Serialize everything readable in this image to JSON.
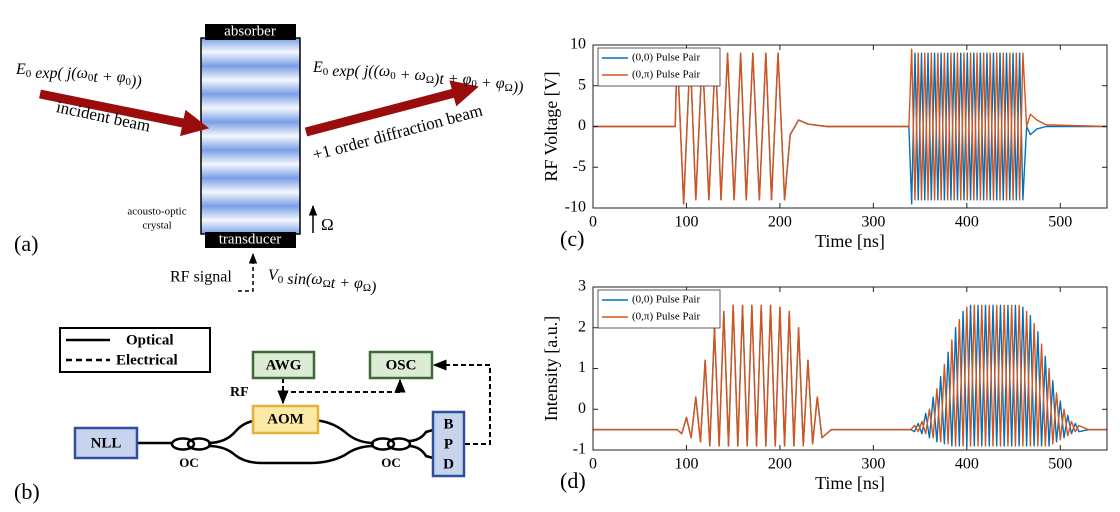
{
  "figure_a": {
    "label": "(a)",
    "absorber": "absorber",
    "transducer": "transducer",
    "incident_beam": "incident beam",
    "diffraction_beam": "+1 order diffraction beam",
    "crystal": [
      "acousto-optic",
      "crystal"
    ],
    "omega": "Ω",
    "rf_signal": "RF signal",
    "input_field": [
      "E",
      {
        "sub": "0"
      },
      " exp( j(ω",
      {
        "sub": "0"
      },
      "t + φ",
      {
        "sub": "0"
      },
      "))"
    ],
    "output_field": [
      "E",
      {
        "sub": "0"
      },
      " exp( j((ω",
      {
        "sub": "0"
      },
      " + ω",
      {
        "sub": "Ω"
      },
      ")t + φ",
      {
        "sub": "0"
      },
      " + φ",
      {
        "sub": "Ω"
      },
      "))"
    ],
    "drive": [
      "V",
      {
        "sub": "0"
      },
      " sin(ω",
      {
        "sub": "Ω"
      },
      "t + φ",
      {
        "sub": "Ω"
      },
      ")"
    ]
  },
  "figure_b": {
    "label": "(b)",
    "legend": [
      "Optical",
      "Electrical"
    ],
    "awg": "AWG",
    "osc": "OSC",
    "aom": "AOM",
    "nll": "NLL",
    "bpd": [
      "B",
      "P",
      "D"
    ],
    "rf": "RF",
    "couplers": [
      "OC",
      "OC"
    ]
  },
  "chart_data": [
    {
      "type": "line",
      "panel_label": "(c)",
      "xlabel": "Time [ns]",
      "ylabel": "RF Voltage [V]",
      "legend": "upper left",
      "xlim": [
        0,
        550
      ],
      "ylim": [
        -10,
        10
      ],
      "xticks": [
        0,
        100,
        200,
        300,
        400,
        500
      ],
      "yticks": [
        -10,
        -5,
        0,
        5,
        10
      ],
      "x": [
        0,
        88,
        90,
        97,
        104,
        110,
        117,
        124,
        131,
        137,
        144,
        151,
        158,
        164,
        171,
        178,
        185,
        191,
        198,
        205,
        211,
        220,
        230,
        250,
        338,
        341,
        344.5,
        348,
        351.5,
        355,
        358.5,
        362,
        365.5,
        369,
        372.5,
        376,
        379.5,
        383,
        386.5,
        390,
        393.5,
        397,
        400.5,
        404,
        407.5,
        411,
        414.5,
        418,
        421.5,
        425,
        428.5,
        432,
        435.5,
        439,
        442.5,
        446,
        449.5,
        453,
        456.5,
        460,
        464,
        468,
        475,
        485,
        550
      ],
      "series": [
        {
          "name": "(0,0) Pulse Pair",
          "color": "#0072BD",
          "values": [
            0,
            0,
            9.5,
            -9.5,
            9,
            -9,
            9,
            -9,
            9,
            -9,
            9,
            -9,
            9,
            -9,
            9,
            -9,
            9,
            -9,
            9,
            -9,
            -1,
            0.8,
            0.3,
            0,
            0,
            -9.5,
            9,
            -9,
            9,
            -9,
            9,
            -9,
            9,
            -9,
            9,
            -9,
            9,
            -9,
            9,
            -9,
            9,
            -9,
            9,
            -9,
            9,
            -9,
            9,
            -9,
            9,
            -9,
            9,
            -9,
            9,
            -9,
            9,
            -9,
            9,
            -9,
            9,
            -9,
            0,
            -1,
            -0.3,
            0,
            0
          ]
        },
        {
          "name": "(0,π) Pulse Pair",
          "color": "#D95319",
          "values": [
            0,
            0,
            9.5,
            -9.5,
            9,
            -9,
            9,
            -9,
            9,
            -9,
            9,
            -9,
            9,
            -9,
            9,
            -9,
            9,
            -9,
            9,
            -9,
            -1,
            0.8,
            0.3,
            0,
            0,
            9.5,
            -9,
            9,
            -9,
            9,
            -9,
            9,
            -9,
            9,
            -9,
            9,
            -9,
            9,
            -9,
            9,
            -9,
            9,
            -9,
            9,
            -9,
            9,
            -9,
            9,
            -9,
            9,
            -9,
            9,
            -9,
            9,
            -9,
            9,
            -9,
            9,
            -9,
            9,
            0,
            1.5,
            0.8,
            0.2,
            0
          ]
        }
      ]
    },
    {
      "type": "line",
      "panel_label": "(d)",
      "xlabel": "Time [ns]",
      "ylabel": "Intensity [a.u.]",
      "legend": "upper left",
      "xlim": [
        0,
        550
      ],
      "ylim": [
        -1,
        3
      ],
      "xticks": [
        0,
        100,
        200,
        300,
        400,
        500
      ],
      "yticks": [
        -1,
        0,
        1,
        2,
        3
      ],
      "x": [
        0,
        90,
        95,
        100,
        105,
        110,
        115,
        120,
        125,
        130,
        135,
        140,
        145,
        150,
        155,
        160,
        165,
        170,
        175,
        180,
        185,
        190,
        195,
        200,
        205,
        210,
        215,
        220,
        225,
        230,
        235,
        240,
        245,
        255,
        340,
        344,
        348,
        352,
        356,
        360,
        364,
        368,
        372,
        376,
        380,
        384,
        388,
        392,
        396,
        400,
        404,
        408,
        412,
        416,
        420,
        424,
        428,
        432,
        436,
        440,
        444,
        448,
        452,
        456,
        460,
        464,
        468,
        472,
        476,
        480,
        484,
        488,
        492,
        496,
        500,
        504,
        508,
        512,
        516,
        520,
        530,
        550
      ],
      "series": [
        {
          "name": "(0,0) Pulse Pair",
          "color": "#0072BD",
          "values": [
            -0.5,
            -0.5,
            -0.6,
            -0.2,
            -0.7,
            0.3,
            -0.8,
            1.2,
            -0.9,
            2.0,
            -0.9,
            2.4,
            -0.9,
            2.55,
            -0.9,
            2.55,
            -0.9,
            2.55,
            -0.9,
            2.55,
            -0.9,
            2.55,
            -0.9,
            2.5,
            -0.9,
            2.4,
            -0.9,
            2.0,
            -0.9,
            1.2,
            -0.85,
            0.3,
            -0.7,
            -0.5,
            -0.5,
            -0.55,
            -0.35,
            -0.6,
            -0.1,
            -0.7,
            0.3,
            -0.8,
            0.8,
            -0.85,
            1.4,
            -0.9,
            2.0,
            -0.9,
            2.4,
            -0.9,
            2.55,
            -0.9,
            2.55,
            -0.9,
            2.55,
            -0.9,
            2.55,
            -0.9,
            2.55,
            -0.9,
            2.55,
            -0.9,
            2.55,
            -0.9,
            2.5,
            -0.9,
            2.3,
            -0.9,
            1.9,
            -0.9,
            1.3,
            -0.9,
            0.7,
            -0.8,
            0.2,
            -0.7,
            -0.15,
            -0.6,
            -0.35,
            -0.55,
            -0.5,
            -0.5
          ]
        },
        {
          "name": "(0,π) Pulse Pair",
          "color": "#D95319",
          "values": [
            -0.5,
            -0.5,
            -0.6,
            -0.2,
            -0.7,
            0.3,
            -0.8,
            1.2,
            -0.9,
            2.0,
            -0.9,
            2.4,
            -0.9,
            2.55,
            -0.9,
            2.55,
            -0.9,
            2.55,
            -0.9,
            2.55,
            -0.9,
            2.55,
            -0.9,
            2.5,
            -0.9,
            2.4,
            -0.9,
            2.0,
            -0.9,
            1.2,
            -0.85,
            0.3,
            -0.7,
            -0.5,
            -0.5,
            -0.4,
            -0.55,
            -0.3,
            -0.6,
            0.0,
            -0.7,
            0.5,
            -0.8,
            1.1,
            -0.85,
            1.7,
            -0.9,
            2.2,
            -0.9,
            2.5,
            -0.9,
            2.55,
            -0.9,
            2.55,
            -0.9,
            2.55,
            -0.9,
            2.55,
            -0.9,
            2.55,
            -0.9,
            2.55,
            -0.9,
            2.55,
            -0.9,
            2.4,
            -0.9,
            2.1,
            -0.9,
            1.6,
            -0.9,
            1.0,
            -0.85,
            0.4,
            -0.75,
            0.0,
            -0.65,
            -0.3,
            -0.55,
            -0.4,
            -0.5,
            -0.5
          ]
        }
      ]
    }
  ]
}
